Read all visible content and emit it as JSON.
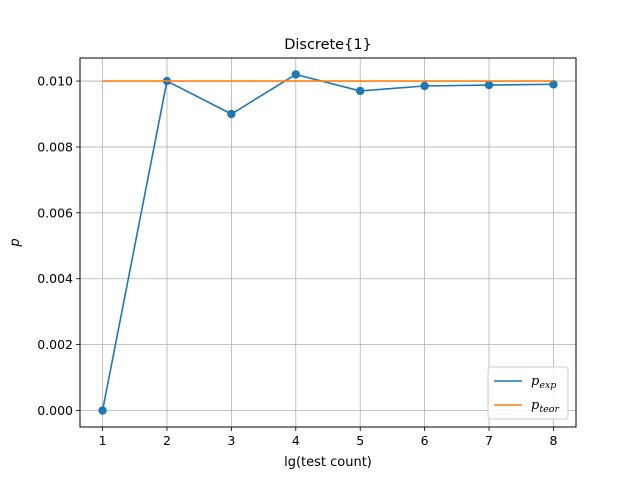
{
  "chart_data": {
    "type": "line",
    "title": "Discrete{1}",
    "xlabel": "lg(test count)",
    "ylabel": "p",
    "x": [
      1,
      2,
      3,
      4,
      5,
      6,
      7,
      8
    ],
    "xlim": [
      0.65,
      8.35
    ],
    "ylim": [
      -0.0005,
      0.0107
    ],
    "xticks": [
      1,
      2,
      3,
      4,
      5,
      6,
      7,
      8
    ],
    "yticks": [
      0.0,
      0.002,
      0.004,
      0.006,
      0.008,
      0.01
    ],
    "ytick_labels": [
      "0.000",
      "0.002",
      "0.004",
      "0.006",
      "0.008",
      "0.010"
    ],
    "grid": true,
    "legend_position": "lower-right",
    "series": [
      {
        "name": "p_exp",
        "name_main": "p",
        "name_sub": "exp",
        "color": "#1f77b4",
        "markers": true,
        "values": [
          0.0,
          0.01,
          0.009,
          0.0102,
          0.0097,
          0.00985,
          0.00988,
          0.0099
        ]
      },
      {
        "name": "p_teor",
        "name_main": "p",
        "name_sub": "teor",
        "color": "#ff7f0e",
        "markers": false,
        "values": [
          0.01,
          0.01,
          0.01,
          0.01,
          0.01,
          0.01,
          0.01,
          0.01
        ]
      }
    ]
  }
}
